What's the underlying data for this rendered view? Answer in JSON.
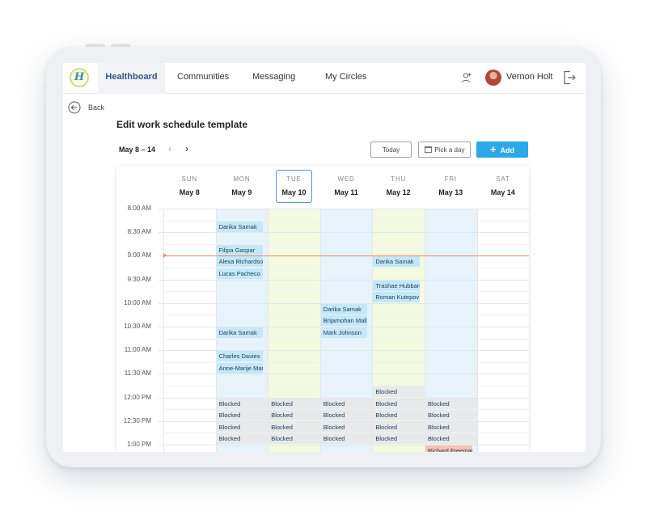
{
  "colors": {
    "accent": "#2aa9e6",
    "nav_active": "#2f5a8e",
    "event_blue": "#c3e8f8",
    "event_red": "#f5c3b8",
    "blocked": "#e8e9eb",
    "col_blue": "#e6f3fb",
    "col_green": "#f4fadf",
    "now_line": "#e98a6c"
  },
  "header": {
    "logo": "H",
    "nav": [
      "Healthboard",
      "Communities",
      "Messaging",
      "My Circles"
    ],
    "active_nav": "Healthboard",
    "user_name": "Vernon Holt",
    "icons": [
      "add-user-icon",
      "avatar",
      "logout-icon"
    ]
  },
  "page": {
    "back_label": "Back",
    "title": "Edit work schedule template",
    "week_range": "May 8 – 14",
    "prev_arrow": "‹",
    "next_arrow": "›",
    "today_label": "Today",
    "pick_day_label": "Pick a day",
    "add_label": "Add",
    "add_icon": "+"
  },
  "calendar": {
    "selected_day": 2,
    "current_time_row": 2,
    "days": [
      {
        "name": "SUN",
        "date": "May 8"
      },
      {
        "name": "MON",
        "date": "May 9"
      },
      {
        "name": "TUE",
        "date": "May 10"
      },
      {
        "name": "WED",
        "date": "May 11"
      },
      {
        "name": "THU",
        "date": "May 12"
      },
      {
        "name": "FRI",
        "date": "May 13"
      },
      {
        "name": "SAT",
        "date": "May 14"
      }
    ],
    "times": [
      "8:00 AM",
      "8:30 AM",
      "9:00 AM",
      "9:30 AM",
      "10:00 AM",
      "10:30 AM",
      "11:00 AM",
      "11:30 AM",
      "12:00 PM",
      "12:30 PM",
      "1:00 PM"
    ],
    "column_tints": [
      "none",
      "blue",
      "green",
      "blue",
      "green",
      "blue",
      "none"
    ],
    "events": [
      {
        "day": 1,
        "slot": 1,
        "label": "Darika Samak",
        "kind": "blue"
      },
      {
        "day": 1,
        "slot": 3,
        "label": "Filipa Gaspar",
        "kind": "blue"
      },
      {
        "day": 1,
        "slot": 4,
        "label": "Alexa Richardson",
        "kind": "blue"
      },
      {
        "day": 1,
        "slot": 5,
        "label": "Lucas Pacheco",
        "kind": "blue"
      },
      {
        "day": 1,
        "slot": 10,
        "label": "Darika Samak",
        "kind": "blue"
      },
      {
        "day": 1,
        "slot": 12,
        "label": "Charles Davies",
        "kind": "blue"
      },
      {
        "day": 1,
        "slot": 13,
        "label": "Anne-Marije Mars",
        "kind": "blue"
      },
      {
        "day": 3,
        "slot": 8,
        "label": "Darika Samak",
        "kind": "blue"
      },
      {
        "day": 3,
        "slot": 9,
        "label": "Brijamohan Mallick",
        "kind": "blue"
      },
      {
        "day": 3,
        "slot": 10,
        "label": "Mark Johnson",
        "kind": "blue"
      },
      {
        "day": 4,
        "slot": 4,
        "label": "Darika Samak",
        "kind": "blue"
      },
      {
        "day": 4,
        "slot": 6,
        "label": "Trashae Hubbard",
        "kind": "blue"
      },
      {
        "day": 4,
        "slot": 7,
        "label": "Roman Kutepov",
        "kind": "blue"
      },
      {
        "day": 4,
        "slot": 15,
        "label": "Blocked",
        "kind": "blocked"
      },
      {
        "day": 1,
        "slot": 16,
        "label": "Blocked",
        "kind": "blocked"
      },
      {
        "day": 2,
        "slot": 16,
        "label": "Blocked",
        "kind": "blocked"
      },
      {
        "day": 3,
        "slot": 16,
        "label": "Blocked",
        "kind": "blocked"
      },
      {
        "day": 4,
        "slot": 16,
        "label": "Blocked",
        "kind": "blocked"
      },
      {
        "day": 5,
        "slot": 16,
        "label": "Blocked",
        "kind": "blocked"
      },
      {
        "day": 1,
        "slot": 17,
        "label": "Blocked",
        "kind": "blocked"
      },
      {
        "day": 2,
        "slot": 17,
        "label": "Blocked",
        "kind": "blocked"
      },
      {
        "day": 3,
        "slot": 17,
        "label": "Blocked",
        "kind": "blocked"
      },
      {
        "day": 4,
        "slot": 17,
        "label": "Blocked",
        "kind": "blocked"
      },
      {
        "day": 5,
        "slot": 17,
        "label": "Blocked",
        "kind": "blocked"
      },
      {
        "day": 1,
        "slot": 18,
        "label": "Blocked",
        "kind": "blocked"
      },
      {
        "day": 2,
        "slot": 18,
        "label": "Blocked",
        "kind": "blocked"
      },
      {
        "day": 3,
        "slot": 18,
        "label": "Blocked",
        "kind": "blocked"
      },
      {
        "day": 4,
        "slot": 18,
        "label": "Blocked",
        "kind": "blocked"
      },
      {
        "day": 5,
        "slot": 18,
        "label": "Blocked",
        "kind": "blocked"
      },
      {
        "day": 1,
        "slot": 19,
        "label": "Blocked",
        "kind": "blocked"
      },
      {
        "day": 2,
        "slot": 19,
        "label": "Blocked",
        "kind": "blocked"
      },
      {
        "day": 3,
        "slot": 19,
        "label": "Blocked",
        "kind": "blocked"
      },
      {
        "day": 4,
        "slot": 19,
        "label": "Blocked",
        "kind": "blocked"
      },
      {
        "day": 5,
        "slot": 19,
        "label": "Blocked",
        "kind": "blocked"
      },
      {
        "day": 5,
        "slot": 20,
        "label": "Richard Freeman",
        "kind": "red"
      }
    ]
  }
}
